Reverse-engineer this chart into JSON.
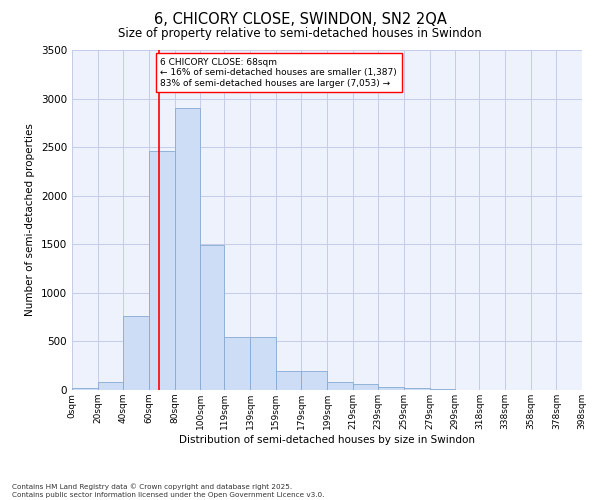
{
  "title": "6, CHICORY CLOSE, SWINDON, SN2 2QA",
  "subtitle": "Size of property relative to semi-detached houses in Swindon",
  "xlabel": "Distribution of semi-detached houses by size in Swindon",
  "ylabel": "Number of semi-detached properties",
  "bar_color": "#ccddf5",
  "bar_edge_color": "#85aad4",
  "background_color": "#eef2fc",
  "annotation_text": "6 CHICORY CLOSE: 68sqm\n← 16% of semi-detached houses are smaller (1,387)\n83% of semi-detached houses are larger (7,053) →",
  "red_line_x": 68,
  "bins": [
    0,
    20,
    40,
    60,
    80,
    100,
    119,
    139,
    159,
    179,
    199,
    219,
    239,
    259,
    279,
    299,
    318,
    338,
    358,
    378,
    398
  ],
  "counts": [
    25,
    85,
    760,
    2460,
    2900,
    1490,
    550,
    545,
    200,
    195,
    85,
    65,
    30,
    25,
    10,
    5,
    5,
    2,
    0,
    0
  ],
  "ylim": [
    0,
    3500
  ],
  "yticks": [
    0,
    500,
    1000,
    1500,
    2000,
    2500,
    3000,
    3500
  ],
  "footnote": "Contains HM Land Registry data © Crown copyright and database right 2025.\nContains public sector information licensed under the Open Government Licence v3.0.",
  "grid_color": "#c5cce8"
}
